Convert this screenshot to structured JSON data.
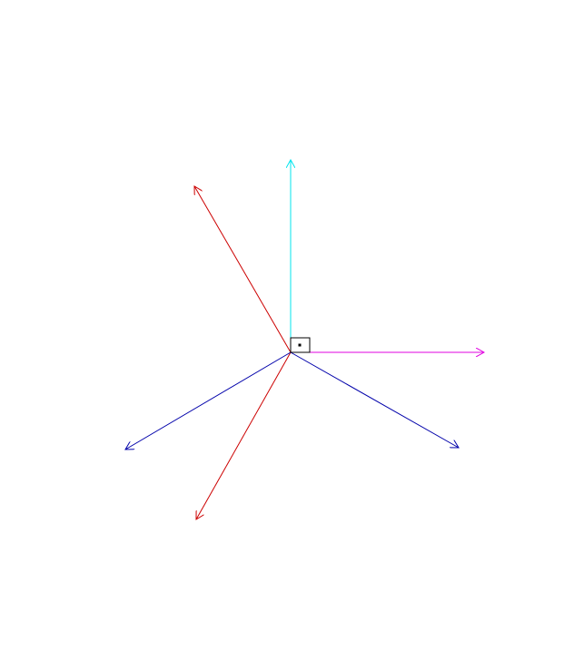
{
  "diagram": {
    "type": "vector-diagram",
    "background": "#ffffff",
    "right_angle_marker": true,
    "vectors": [
      {
        "id": "cyan-up",
        "color": "#00e5ee",
        "direction_deg": 90
      },
      {
        "id": "magenta-right",
        "color": "#e000e0",
        "direction_deg": 0
      },
      {
        "id": "red-upper-left",
        "color": "#cc0000",
        "direction_deg": 120
      },
      {
        "id": "red-lower-left",
        "color": "#cc0000",
        "direction_deg": 240
      },
      {
        "id": "blue-lower-left",
        "color": "#0000aa",
        "direction_deg": 210
      },
      {
        "id": "blue-lower-right",
        "color": "#0000aa",
        "direction_deg": 330
      }
    ]
  }
}
